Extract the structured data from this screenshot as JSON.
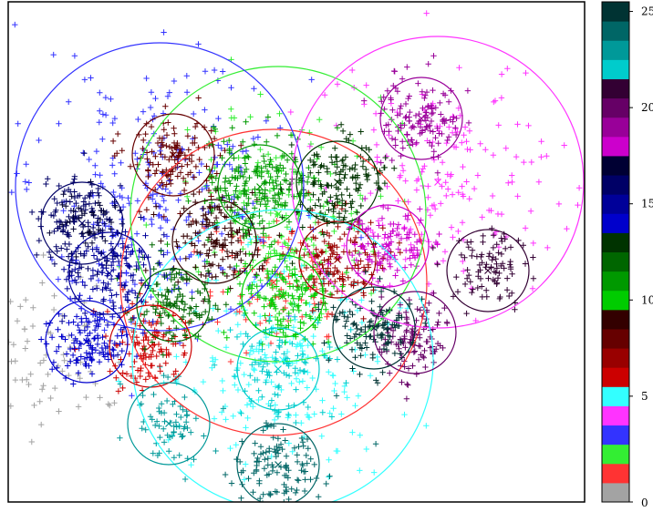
{
  "chart_data": {
    "type": "scatter",
    "title": "",
    "xlabel": "",
    "ylabel": "",
    "marker": "plus",
    "colorbar": {
      "range": [
        0,
        26
      ],
      "tick_labels": [
        "0",
        "5",
        "10",
        "15",
        "20",
        "25"
      ],
      "colors": [
        "#a3a3a3",
        "#ff3333",
        "#33ee33",
        "#3333ff",
        "#ff33ff",
        "#33ffff",
        "#cc0000",
        "#990000",
        "#660000",
        "#330000",
        "#00cc00",
        "#009900",
        "#006600",
        "#003300",
        "#0000cc",
        "#000099",
        "#000066",
        "#000033",
        "#cc00cc",
        "#990099",
        "#660066",
        "#330033",
        "#00cccc",
        "#009999",
        "#006666",
        "#003333"
      ]
    },
    "clusters": [
      {
        "label": 0,
        "color": "#a3a3a3",
        "center": [
          60,
          385
        ],
        "spread": 40,
        "count": 80,
        "radius": 0
      },
      {
        "label": 1,
        "color": "#ff3333",
        "center": [
          300,
          310
        ],
        "spread": 40,
        "count": 90,
        "radius": 168
      },
      {
        "label": 2,
        "color": "#33ee33",
        "center": [
          305,
          235
        ],
        "spread": 50,
        "count": 180,
        "radius": 162
      },
      {
        "label": 3,
        "color": "#3333ff",
        "center": [
          175,
          205
        ],
        "spread": 70,
        "count": 260,
        "radius": 158
      },
      {
        "label": 4,
        "color": "#ff33ff",
        "center": [
          480,
          200
        ],
        "spread": 65,
        "count": 180,
        "radius": 160
      },
      {
        "label": 5,
        "color": "#33ffff",
        "center": [
          310,
          395
        ],
        "spread": 60,
        "count": 200,
        "radius": 165
      },
      {
        "label": 6,
        "color": "#cc0000",
        "center": [
          165,
          380
        ],
        "spread": 22,
        "count": 120,
        "radius": 45
      },
      {
        "label": 7,
        "color": "#990000",
        "center": [
          370,
          285
        ],
        "spread": 25,
        "count": 140,
        "radius": 42
      },
      {
        "label": 8,
        "color": "#660000",
        "center": [
          190,
          170
        ],
        "spread": 25,
        "count": 130,
        "radius": 45
      },
      {
        "label": 9,
        "color": "#330000",
        "center": [
          235,
          265
        ],
        "spread": 25,
        "count": 140,
        "radius": 46
      },
      {
        "label": 10,
        "color": "#00cc00",
        "center": [
          310,
          325
        ],
        "spread": 25,
        "count": 150,
        "radius": 45
      },
      {
        "label": 11,
        "color": "#009900",
        "center": [
          285,
          205
        ],
        "spread": 30,
        "count": 200,
        "radius": 46
      },
      {
        "label": 12,
        "color": "#006600",
        "center": [
          190,
          335
        ],
        "spread": 22,
        "count": 110,
        "radius": 40
      },
      {
        "label": 13,
        "color": "#003300",
        "center": [
          370,
          200
        ],
        "spread": 25,
        "count": 150,
        "radius": 45
      },
      {
        "label": 14,
        "color": "#0000cc",
        "center": [
          95,
          375
        ],
        "spread": 22,
        "count": 130,
        "radius": 45
      },
      {
        "label": 15,
        "color": "#000099",
        "center": [
          120,
          300
        ],
        "spread": 25,
        "count": 130,
        "radius": 45
      },
      {
        "label": 16,
        "color": "#000066",
        "center": [
          90,
          245
        ],
        "spread": 25,
        "count": 140,
        "radius": 45
      },
      {
        "label": 17,
        "color": "#000033",
        "center": [
          90,
          245
        ],
        "spread": 15,
        "count": 40,
        "radius": 0
      },
      {
        "label": 18,
        "color": "#cc00cc",
        "center": [
          425,
          270
        ],
        "spread": 22,
        "count": 110,
        "radius": 45
      },
      {
        "label": 19,
        "color": "#990099",
        "center": [
          462,
          130
        ],
        "spread": 22,
        "count": 130,
        "radius": 45
      },
      {
        "label": 20,
        "color": "#660066",
        "center": [
          455,
          365
        ],
        "spread": 22,
        "count": 110,
        "radius": 45
      },
      {
        "label": 21,
        "color": "#330033",
        "center": [
          535,
          297
        ],
        "spread": 22,
        "count": 90,
        "radius": 45
      },
      {
        "label": 22,
        "color": "#00cccc",
        "center": [
          305,
          405
        ],
        "spread": 25,
        "count": 100,
        "radius": 45
      },
      {
        "label": 23,
        "color": "#009999",
        "center": [
          185,
          465
        ],
        "spread": 22,
        "count": 70,
        "radius": 45
      },
      {
        "label": 24,
        "color": "#006666",
        "center": [
          305,
          510
        ],
        "spread": 25,
        "count": 120,
        "radius": 45
      },
      {
        "label": 25,
        "color": "#003333",
        "center": [
          410,
          360
        ],
        "spread": 22,
        "count": 120,
        "radius": 45
      }
    ],
    "grid": false,
    "legend": "colorbar-right"
  }
}
